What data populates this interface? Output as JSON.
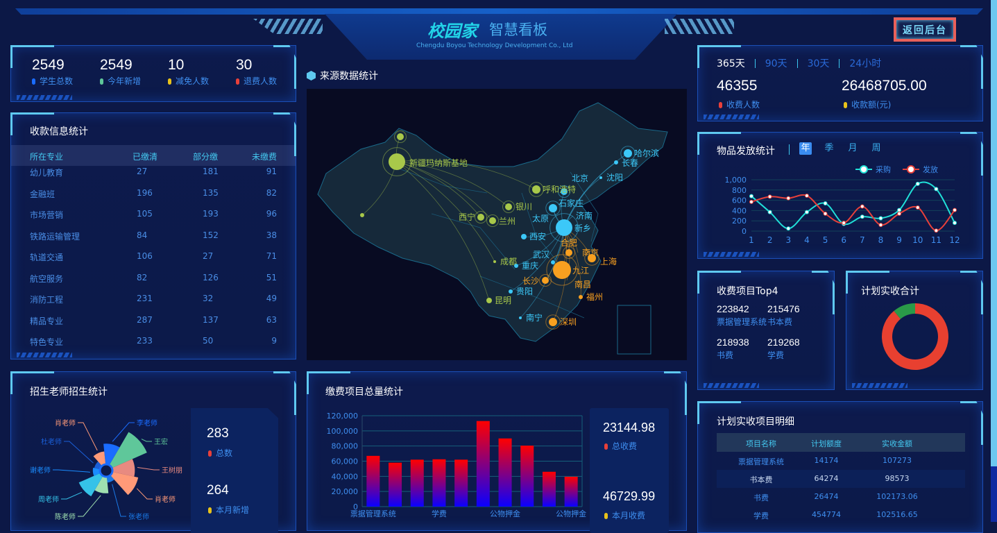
{
  "header": {
    "logo_text": "校园家",
    "title": "智慧看板",
    "subtitle": "Chengdu Boyou Technology Development Co., Ltd",
    "back_button": "返回后台"
  },
  "stats": [
    {
      "value": "2549",
      "label": "学生总数",
      "color": "#1a6cff"
    },
    {
      "value": "2549",
      "label": "今年新增",
      "color": "#5fc79a"
    },
    {
      "value": "10",
      "label": "减免人数",
      "color": "#e8c21a"
    },
    {
      "value": "30",
      "label": "退费人数",
      "color": "#e8403a"
    }
  ],
  "payment_info": {
    "title": "收款信息统计",
    "columns": [
      "所在专业",
      "已缴清",
      "部分缴",
      "未缴费"
    ],
    "rows": [
      [
        "幼儿教育",
        "27",
        "181",
        "91"
      ],
      [
        "金融班",
        "196",
        "135",
        "82"
      ],
      [
        "市场营销",
        "105",
        "193",
        "96"
      ],
      [
        "铁路运输管理",
        "84",
        "152",
        "38"
      ],
      [
        "轨道交通",
        "106",
        "27",
        "71"
      ],
      [
        "航空服务",
        "82",
        "126",
        "51"
      ],
      [
        "消防工程",
        "231",
        "32",
        "49"
      ],
      [
        "精品专业",
        "287",
        "137",
        "63"
      ],
      [
        "特色专业",
        "233",
        "50",
        "9"
      ]
    ]
  },
  "teacher_stats": {
    "title": "招生老师招生统计",
    "total_value": "283",
    "total_label": "总数",
    "month_value": "264",
    "month_label": "本月新增",
    "chart_data": {
      "type": "rose",
      "series": [
        {
          "name": "李老师",
          "value": 35,
          "color": "#1a6cff"
        },
        {
          "name": "王宏",
          "value": 65,
          "color": "#5fc79a"
        },
        {
          "name": "王树朋",
          "value": 38,
          "color": "#e88a80"
        },
        {
          "name": "肖老师",
          "value": 45,
          "color": "#ff9a78"
        },
        {
          "name": "张老师",
          "value": 10,
          "color": "#1a7ae8"
        },
        {
          "name": "陈老师",
          "value": 28,
          "color": "#9fe0b0"
        },
        {
          "name": "周老师",
          "value": 40,
          "color": "#35c2e8"
        },
        {
          "name": "谢老师",
          "value": 12,
          "color": "#1a8cff"
        },
        {
          "name": "杜老师",
          "value": 10,
          "color": "#1a5fd8"
        },
        {
          "name": "肖老师",
          "value": 22,
          "color": "#ff9a78"
        }
      ]
    }
  },
  "map": {
    "title": "来源数据统计",
    "cities": [
      {
        "name": "新疆玛纳斯基地",
        "color": "#a8c84a"
      },
      {
        "name": "",
        "color": "#a8c84a"
      },
      {
        "name": "",
        "color": "#a8c84a"
      },
      {
        "name": "呼和浩特",
        "color": "#a8c84a"
      },
      {
        "name": "银川",
        "color": "#a8c84a"
      },
      {
        "name": "西宁",
        "color": "#a8c84a"
      },
      {
        "name": "兰州",
        "color": "#a8c84a"
      },
      {
        "name": "成都",
        "color": "#a8c84a"
      },
      {
        "name": "昆明",
        "color": "#a8c84a"
      },
      {
        "name": "北京",
        "color": "#3cc8f8"
      },
      {
        "name": "哈尔滨",
        "color": "#3cc8f8"
      },
      {
        "name": "长春",
        "color": "#3cc8f8"
      },
      {
        "name": "沈阳",
        "color": "#3cc8f8"
      },
      {
        "name": "太原",
        "color": "#3cc8f8"
      },
      {
        "name": "石家庄",
        "color": "#3cc8f8"
      },
      {
        "name": "济南",
        "color": "#3cc8f8"
      },
      {
        "name": "新乡",
        "color": "#3cc8f8"
      },
      {
        "name": "西安",
        "color": "#3cc8f8"
      },
      {
        "name": "重庆",
        "color": "#3cc8f8"
      },
      {
        "name": "贵阳",
        "color": "#3cc8f8"
      },
      {
        "name": "南宁",
        "color": "#3cc8f8"
      },
      {
        "name": "武汉",
        "color": "#3cc8f8"
      },
      {
        "name": "合肥",
        "color": "#f8a020"
      },
      {
        "name": "南京",
        "color": "#f8a020"
      },
      {
        "name": "上海",
        "color": "#f8a020"
      },
      {
        "name": "九江",
        "color": "#f8a020"
      },
      {
        "name": "长沙",
        "color": "#f8a020"
      },
      {
        "name": "南昌",
        "color": "#f8a020"
      },
      {
        "name": "福州",
        "color": "#f8a020"
      },
      {
        "name": "深圳",
        "color": "#f8a020"
      }
    ]
  },
  "fee_items": {
    "title": "缴费项目总量统计",
    "total_value": "23144.98",
    "total_label": "总收费",
    "month_value": "46729.99",
    "month_label": "本月收费",
    "chart_data": {
      "type": "bar",
      "categories": [
        "票据管理系统",
        "",
        "",
        "学费",
        "",
        "",
        "公物押金",
        "",
        "",
        "公物押金"
      ],
      "values": [
        67000,
        58000,
        62000,
        62500,
        62000,
        113000,
        90000,
        80500,
        46000,
        39500
      ],
      "ylim": [
        0,
        120000
      ],
      "yticks": [
        "0",
        "20,000",
        "40,000",
        "60,000",
        "80,000",
        "100,000",
        "120,000"
      ],
      "gradient": [
        "#ff0000",
        "#0a00ff"
      ],
      "grid": true
    }
  },
  "summary": {
    "tabs": [
      "365天",
      "90天",
      "30天",
      "24小时"
    ],
    "active_tab": 0,
    "people_value": "46355",
    "people_label": "收费人数",
    "amount_value": "26468705.00",
    "amount_label": "收款额(元)"
  },
  "goods": {
    "title": "物品发放统计",
    "tabs": [
      "年",
      "季",
      "月",
      "周"
    ],
    "active_tab": 0,
    "chart_data": {
      "type": "line",
      "x": [
        1,
        2,
        3,
        4,
        5,
        6,
        7,
        8,
        9,
        10,
        11,
        12
      ],
      "ylim": [
        0,
        1000
      ],
      "yticks": [
        "0",
        "200",
        "400",
        "600",
        "800",
        "1,000"
      ],
      "legend": "top-right",
      "series": [
        {
          "name": "采购",
          "color": "#20e0d8",
          "values": [
            680,
            370,
            50,
            370,
            540,
            140,
            280,
            250,
            410,
            920,
            820,
            160
          ]
        },
        {
          "name": "发放",
          "color": "#e8403a",
          "values": [
            570,
            670,
            640,
            690,
            340,
            160,
            480,
            120,
            340,
            460,
            10,
            410
          ]
        }
      ]
    }
  },
  "top4": {
    "title": "收费项目Top4",
    "items": [
      {
        "value": "223842",
        "label": "票据管理系统"
      },
      {
        "value": "215476",
        "label": "书本费"
      },
      {
        "value": "218938",
        "label": "书费"
      },
      {
        "value": "219268",
        "label": "学费"
      }
    ]
  },
  "plan_total": {
    "title": "计划实收合计",
    "chart_data": {
      "type": "pie",
      "segments": [
        {
          "value": 89,
          "color": "#e84030"
        },
        {
          "value": 11,
          "color": "#2a9a48"
        }
      ]
    }
  },
  "plan_detail": {
    "title": "计划实收项目明细",
    "columns": [
      "项目名称",
      "计划额度",
      "实收金额"
    ],
    "rows": [
      [
        "票据管理系统",
        "14174",
        "107273"
      ],
      [
        "书本费",
        "64274",
        "98573"
      ],
      [
        "书费",
        "26474",
        "102173.06"
      ],
      [
        "学费",
        "454774",
        "102516.65"
      ]
    ]
  }
}
